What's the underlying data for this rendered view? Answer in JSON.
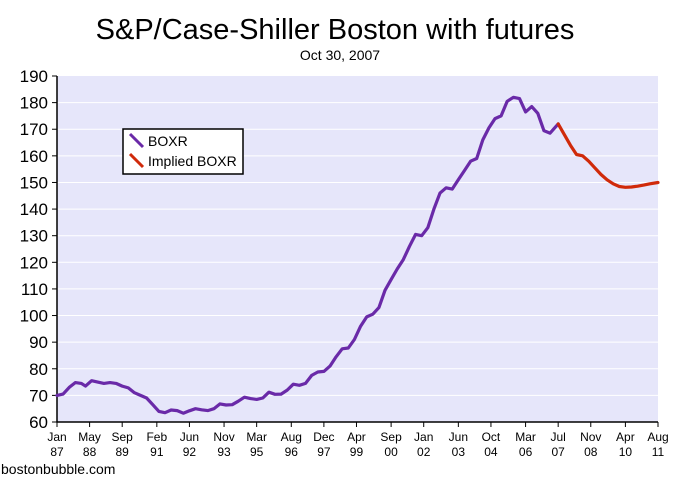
{
  "chart_data": {
    "type": "line",
    "title": "S&P/Case-Shiller Boston with futures",
    "subtitle": "Oct 30, 2007",
    "source_label": "bostonbubble.com",
    "ylim": [
      60,
      190
    ],
    "xlim": [
      "1987-01",
      "2011-08"
    ],
    "yticks": [
      60,
      70,
      80,
      90,
      100,
      110,
      120,
      130,
      140,
      150,
      160,
      170,
      180,
      190
    ],
    "xticks": [
      {
        "date": "1987-01",
        "line1": "Jan",
        "line2": "87"
      },
      {
        "date": "1988-05",
        "line1": "May",
        "line2": "88"
      },
      {
        "date": "1989-09",
        "line1": "Sep",
        "line2": "89"
      },
      {
        "date": "1991-02",
        "line1": "Feb",
        "line2": "91"
      },
      {
        "date": "1992-06",
        "line1": "Jun",
        "line2": "92"
      },
      {
        "date": "1993-11",
        "line1": "Nov",
        "line2": "93"
      },
      {
        "date": "1995-03",
        "line1": "Mar",
        "line2": "95"
      },
      {
        "date": "1996-08",
        "line1": "Aug",
        "line2": "96"
      },
      {
        "date": "1997-12",
        "line1": "Dec",
        "line2": "97"
      },
      {
        "date": "1999-04",
        "line1": "Apr",
        "line2": "99"
      },
      {
        "date": "2000-09",
        "line1": "Sep",
        "line2": "00"
      },
      {
        "date": "2002-01",
        "line1": "Jan",
        "line2": "02"
      },
      {
        "date": "2003-06",
        "line1": "Jun",
        "line2": "03"
      },
      {
        "date": "2004-10",
        "line1": "Oct",
        "line2": "04"
      },
      {
        "date": "2006-03",
        "line1": "Mar",
        "line2": "06"
      },
      {
        "date": "2007-07",
        "line1": "Jul",
        "line2": "07"
      },
      {
        "date": "2008-11",
        "line1": "Nov",
        "line2": "08"
      },
      {
        "date": "2010-04",
        "line1": "Apr",
        "line2": "10"
      },
      {
        "date": "2011-08",
        "line1": "Aug",
        "line2": "11"
      }
    ],
    "grid": true,
    "legend_position": "top-left",
    "colors": {
      "plot_bg": "#e6e6fa",
      "grid": "#ffffff",
      "boxr": "#6a2aa8",
      "implied": "#d02a0a"
    },
    "series": [
      {
        "name": "BOXR",
        "points": [
          [
            "1987-01",
            70.0
          ],
          [
            "1987-04",
            70.5
          ],
          [
            "1987-07",
            73.0
          ],
          [
            "1987-10",
            74.8
          ],
          [
            "1988-01",
            74.5
          ],
          [
            "1988-03",
            73.5
          ],
          [
            "1988-06",
            75.5
          ],
          [
            "1988-09",
            75.0
          ],
          [
            "1988-12",
            74.5
          ],
          [
            "1989-03",
            74.8
          ],
          [
            "1989-06",
            74.5
          ],
          [
            "1989-09",
            73.5
          ],
          [
            "1989-12",
            72.8
          ],
          [
            "1990-03",
            71.0
          ],
          [
            "1990-06",
            70.0
          ],
          [
            "1990-09",
            69.0
          ],
          [
            "1990-12",
            66.5
          ],
          [
            "1991-03",
            64.0
          ],
          [
            "1991-06",
            63.5
          ],
          [
            "1991-09",
            64.5
          ],
          [
            "1991-12",
            64.3
          ],
          [
            "1992-03",
            63.3
          ],
          [
            "1992-06",
            64.2
          ],
          [
            "1992-09",
            65.0
          ],
          [
            "1992-12",
            64.6
          ],
          [
            "1993-03",
            64.3
          ],
          [
            "1993-06",
            65.0
          ],
          [
            "1993-09",
            66.8
          ],
          [
            "1993-12",
            66.4
          ],
          [
            "1994-03",
            66.5
          ],
          [
            "1994-06",
            67.8
          ],
          [
            "1994-09",
            69.3
          ],
          [
            "1994-12",
            68.8
          ],
          [
            "1995-03",
            68.5
          ],
          [
            "1995-06",
            69.0
          ],
          [
            "1995-09",
            71.2
          ],
          [
            "1995-12",
            70.4
          ],
          [
            "1996-03",
            70.5
          ],
          [
            "1996-06",
            72.0
          ],
          [
            "1996-09",
            74.2
          ],
          [
            "1996-12",
            73.8
          ],
          [
            "1997-03",
            74.5
          ],
          [
            "1997-06",
            77.5
          ],
          [
            "1997-09",
            78.8
          ],
          [
            "1997-12",
            79.0
          ],
          [
            "1998-03",
            81.0
          ],
          [
            "1998-06",
            84.5
          ],
          [
            "1998-09",
            87.5
          ],
          [
            "1998-12",
            87.8
          ],
          [
            "1999-03",
            91.0
          ],
          [
            "1999-06",
            96.0
          ],
          [
            "1999-09",
            99.5
          ],
          [
            "1999-12",
            100.5
          ],
          [
            "2000-03",
            103.0
          ],
          [
            "2000-06",
            109.5
          ],
          [
            "2000-09",
            113.5
          ],
          [
            "2000-12",
            117.5
          ],
          [
            "2001-03",
            121.0
          ],
          [
            "2001-06",
            126.0
          ],
          [
            "2001-09",
            130.5
          ],
          [
            "2001-12",
            130.0
          ],
          [
            "2002-03",
            133.0
          ],
          [
            "2002-06",
            140.0
          ],
          [
            "2002-09",
            146.0
          ],
          [
            "2002-12",
            148.0
          ],
          [
            "2003-03",
            147.5
          ],
          [
            "2003-06",
            151.0
          ],
          [
            "2003-09",
            154.5
          ],
          [
            "2003-12",
            158.0
          ],
          [
            "2004-03",
            159.0
          ],
          [
            "2004-06",
            166.0
          ],
          [
            "2004-09",
            170.5
          ],
          [
            "2004-12",
            174.0
          ],
          [
            "2005-03",
            175.0
          ],
          [
            "2005-06",
            180.5
          ],
          [
            "2005-09",
            182.0
          ],
          [
            "2005-12",
            181.5
          ],
          [
            "2006-03",
            176.5
          ],
          [
            "2006-06",
            178.5
          ],
          [
            "2006-09",
            176.0
          ],
          [
            "2006-12",
            169.5
          ],
          [
            "2007-03",
            168.5
          ],
          [
            "2007-07",
            172.0
          ]
        ]
      },
      {
        "name": "Implied BOXR",
        "points": [
          [
            "2007-07",
            172.0
          ],
          [
            "2007-10",
            168.0
          ],
          [
            "2008-01",
            164.0
          ],
          [
            "2008-04",
            160.5
          ],
          [
            "2008-07",
            160.0
          ],
          [
            "2008-10",
            158.0
          ],
          [
            "2009-01",
            155.5
          ],
          [
            "2009-04",
            153.0
          ],
          [
            "2009-07",
            151.0
          ],
          [
            "2009-10",
            149.5
          ],
          [
            "2010-01",
            148.5
          ],
          [
            "2010-04",
            148.2
          ],
          [
            "2010-07",
            148.3
          ],
          [
            "2010-10",
            148.6
          ],
          [
            "2011-01",
            149.0
          ],
          [
            "2011-04",
            149.5
          ],
          [
            "2011-08",
            150.0
          ]
        ]
      }
    ]
  }
}
